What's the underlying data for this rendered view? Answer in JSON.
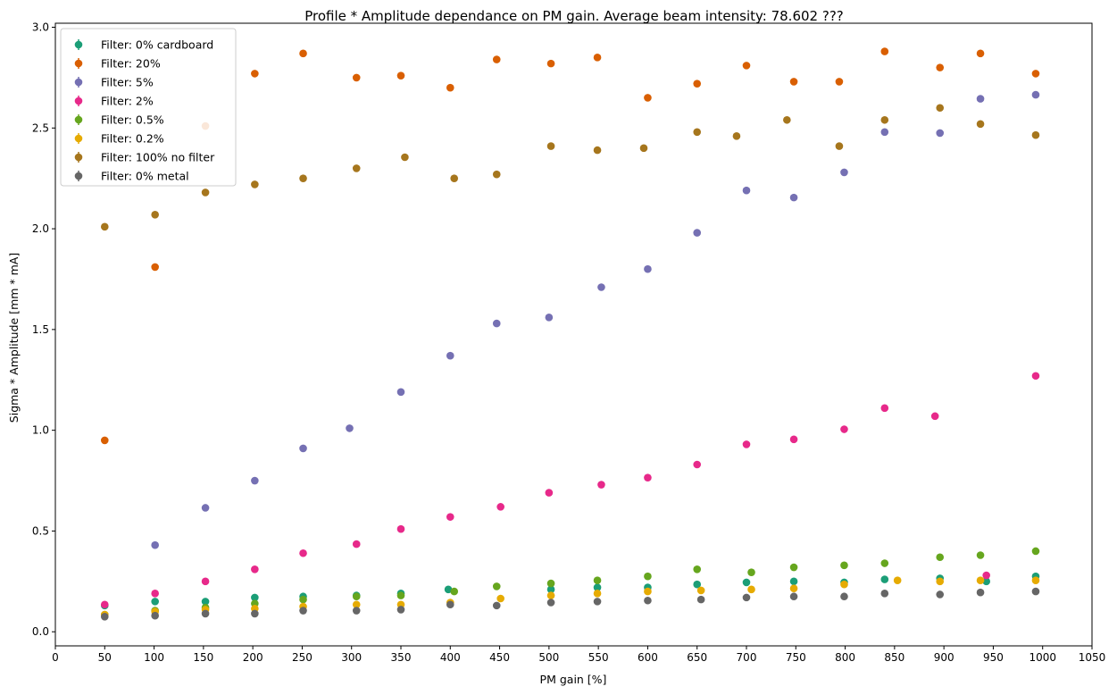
{
  "chart_data": {
    "type": "scatter",
    "title": "Profile * Amplitude dependance on PM gain. Average beam intensity: 78.602 ???",
    "xlabel": "PM gain [%]",
    "ylabel": "Sigma * Amplitude [mm * mA]",
    "xlim": [
      0,
      1050
    ],
    "ylim": [
      -0.07,
      3.02
    ],
    "x_ticks": [
      "0",
      "50",
      "100",
      "150",
      "200",
      "250",
      "300",
      "350",
      "400",
      "450",
      "500",
      "550",
      "600",
      "650",
      "700",
      "750",
      "800",
      "850",
      "900",
      "950",
      "1000",
      "1050"
    ],
    "x_tick_values": [
      0,
      50,
      100,
      150,
      200,
      250,
      300,
      350,
      400,
      450,
      500,
      550,
      600,
      650,
      700,
      750,
      800,
      850,
      900,
      950,
      1000,
      1050
    ],
    "y_ticks": [
      "0.0",
      "0.5",
      "1.0",
      "1.5",
      "2.0",
      "2.5",
      "3.0"
    ],
    "y_tick_values": [
      0.0,
      0.5,
      1.0,
      1.5,
      2.0,
      2.5,
      3.0
    ],
    "grid": false,
    "legend_position": "top-left",
    "series": [
      {
        "name": "Filter: 0% cardboard",
        "color": "#1b9e77",
        "x": [
          50,
          101,
          152,
          202,
          251,
          305,
          350,
          398,
          502,
          549,
          600,
          650,
          700,
          748,
          799,
          840,
          896,
          943,
          993
        ],
        "y": [
          0.13,
          0.15,
          0.15,
          0.17,
          0.175,
          0.18,
          0.19,
          0.21,
          0.21,
          0.22,
          0.22,
          0.235,
          0.245,
          0.25,
          0.245,
          0.26,
          0.265,
          0.25,
          0.275
        ]
      },
      {
        "name": "Filter: 20%",
        "color": "#d95f02",
        "x": [
          50,
          101,
          152,
          202,
          251,
          305,
          350,
          400,
          447,
          502,
          549,
          600,
          650,
          700,
          748,
          794,
          840,
          896,
          937,
          993
        ],
        "y": [
          0.95,
          1.81,
          2.51,
          2.77,
          2.87,
          2.75,
          2.76,
          2.7,
          2.84,
          2.82,
          2.85,
          2.65,
          2.72,
          2.81,
          2.73,
          2.73,
          2.88,
          2.8,
          2.87,
          2.77
        ]
      },
      {
        "name": "Filter: 5%",
        "color": "#7570b3",
        "x": [
          101,
          152,
          202,
          251,
          298,
          350,
          400,
          447,
          500,
          553,
          600,
          650,
          700,
          748,
          799,
          840,
          896,
          937,
          993
        ],
        "y": [
          0.43,
          0.615,
          0.75,
          0.91,
          1.01,
          1.19,
          1.37,
          1.53,
          1.56,
          1.71,
          1.8,
          1.98,
          2.19,
          2.155,
          2.28,
          2.48,
          2.475,
          2.645,
          2.665
        ]
      },
      {
        "name": "Filter: 2%",
        "color": "#e7298a",
        "x": [
          50,
          101,
          152,
          202,
          251,
          305,
          350,
          400,
          451,
          500,
          553,
          600,
          650,
          700,
          748,
          799,
          840,
          891,
          943,
          993
        ],
        "y": [
          0.135,
          0.19,
          0.25,
          0.31,
          0.39,
          0.435,
          0.51,
          0.57,
          0.62,
          0.69,
          0.73,
          0.765,
          0.83,
          0.93,
          0.955,
          1.005,
          1.11,
          1.07,
          0.28,
          1.27
        ]
      },
      {
        "name": "Filter: 0.5%",
        "color": "#66a61e",
        "x": [
          50,
          101,
          152,
          202,
          251,
          305,
          350,
          404,
          447,
          502,
          549,
          600,
          650,
          705,
          748,
          799,
          840,
          896,
          937,
          993
        ],
        "y": [
          0.085,
          0.105,
          0.12,
          0.14,
          0.16,
          0.175,
          0.18,
          0.2,
          0.225,
          0.24,
          0.255,
          0.275,
          0.31,
          0.295,
          0.32,
          0.33,
          0.34,
          0.37,
          0.38,
          0.4
        ]
      },
      {
        "name": "Filter: 0.2%",
        "color": "#e6ab02",
        "x": [
          50,
          101,
          152,
          202,
          251,
          305,
          350,
          400,
          451,
          502,
          549,
          600,
          654,
          705,
          748,
          799,
          853,
          896,
          937,
          993
        ],
        "y": [
          0.085,
          0.1,
          0.11,
          0.115,
          0.125,
          0.135,
          0.135,
          0.145,
          0.165,
          0.18,
          0.19,
          0.2,
          0.205,
          0.21,
          0.215,
          0.235,
          0.255,
          0.25,
          0.255,
          0.255
        ]
      },
      {
        "name": "Filter: 100% no filter",
        "color": "#a6761d",
        "x": [
          50,
          101,
          152,
          202,
          251,
          305,
          354,
          404,
          447,
          502,
          549,
          596,
          650,
          690,
          741,
          794,
          840,
          896,
          937,
          993
        ],
        "y": [
          2.01,
          2.07,
          2.18,
          2.22,
          2.25,
          2.3,
          2.355,
          2.25,
          2.27,
          2.41,
          2.39,
          2.4,
          2.48,
          2.46,
          2.54,
          2.41,
          2.54,
          2.6,
          2.52,
          2.465
        ]
      },
      {
        "name": "Filter: 0% metal",
        "color": "#666666",
        "x": [
          50,
          101,
          152,
          202,
          251,
          305,
          350,
          400,
          447,
          502,
          549,
          600,
          654,
          700,
          748,
          799,
          840,
          896,
          937,
          993
        ],
        "y": [
          0.075,
          0.08,
          0.09,
          0.09,
          0.105,
          0.105,
          0.11,
          0.135,
          0.13,
          0.145,
          0.15,
          0.155,
          0.16,
          0.17,
          0.175,
          0.175,
          0.19,
          0.185,
          0.195,
          0.2
        ]
      }
    ]
  }
}
